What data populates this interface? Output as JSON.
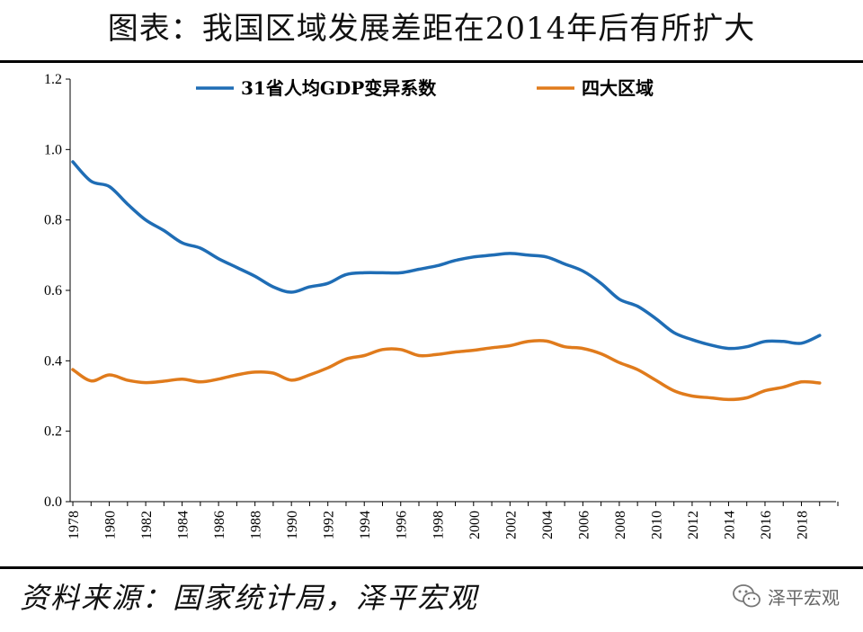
{
  "title": "图表：我国区域发展差距在2014年后有所扩大",
  "source": "资料来源：国家统计局，泽平宏观",
  "watermark": "泽平宏观",
  "watermark_icon": "wechat-icon",
  "colors": {
    "series1": "#1f6db5",
    "series2": "#e07b1c",
    "axis": "#000000"
  },
  "chart_data": {
    "type": "line",
    "ylim": [
      0.0,
      1.2
    ],
    "yticks": [
      "0.0",
      "0.2",
      "0.4",
      "0.6",
      "0.8",
      "1.0",
      "1.2"
    ],
    "xticks": [
      "1978",
      "1980",
      "1982",
      "1984",
      "1986",
      "1988",
      "1990",
      "1992",
      "1994",
      "1996",
      "1998",
      "2000",
      "2002",
      "2004",
      "2006",
      "2008",
      "2010",
      "2012",
      "2014",
      "2016",
      "2018"
    ],
    "legend_position": "top-center",
    "x": [
      1978,
      1979,
      1980,
      1981,
      1982,
      1983,
      1984,
      1985,
      1986,
      1987,
      1988,
      1989,
      1990,
      1991,
      1992,
      1993,
      1994,
      1995,
      1996,
      1997,
      1998,
      1999,
      2000,
      2001,
      2002,
      2003,
      2004,
      2005,
      2006,
      2007,
      2008,
      2009,
      2010,
      2011,
      2012,
      2013,
      2014,
      2015,
      2016,
      2017,
      2018,
      2019
    ],
    "series": [
      {
        "name": "31省人均GDP变异系数",
        "values": [
          0.965,
          0.91,
          0.895,
          0.845,
          0.8,
          0.77,
          0.735,
          0.72,
          0.69,
          0.665,
          0.64,
          0.61,
          0.595,
          0.61,
          0.62,
          0.645,
          0.65,
          0.65,
          0.65,
          0.66,
          0.67,
          0.685,
          0.695,
          0.7,
          0.705,
          0.7,
          0.695,
          0.675,
          0.655,
          0.62,
          0.575,
          0.555,
          0.52,
          0.48,
          0.46,
          0.445,
          0.435,
          0.44,
          0.455,
          0.455,
          0.45,
          0.472
        ]
      },
      {
        "name": "四大区域",
        "values": [
          0.375,
          0.343,
          0.36,
          0.345,
          0.338,
          0.342,
          0.348,
          0.34,
          0.348,
          0.36,
          0.368,
          0.365,
          0.345,
          0.36,
          0.38,
          0.405,
          0.415,
          0.432,
          0.432,
          0.415,
          0.418,
          0.425,
          0.43,
          0.437,
          0.443,
          0.455,
          0.456,
          0.44,
          0.435,
          0.42,
          0.395,
          0.375,
          0.345,
          0.315,
          0.3,
          0.295,
          0.29,
          0.295,
          0.315,
          0.325,
          0.34,
          0.337
        ]
      }
    ]
  }
}
